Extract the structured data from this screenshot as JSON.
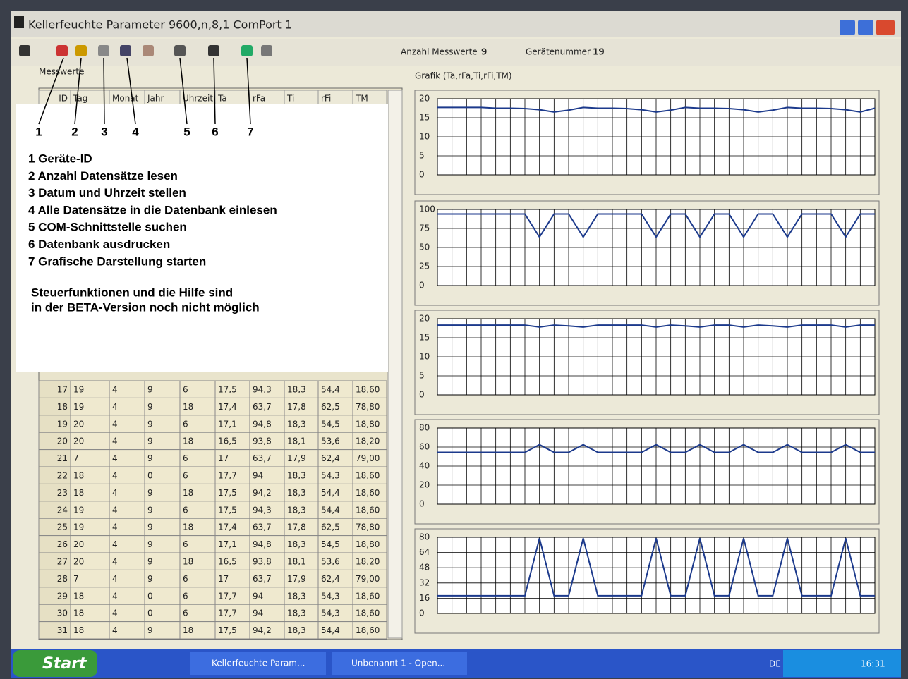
{
  "window": {
    "title": "Kellerfeuchte Parameter 9600,n,8,1 ComPort 1"
  },
  "toolbar": {
    "count_label": "Anzahl Messwerte",
    "count": 9,
    "device_label": "Gerätenummer",
    "device": 19
  },
  "table": {
    "group": "Messwerte",
    "columns": [
      "ID",
      "Tag",
      "Monat",
      "Jahr",
      "Uhrzeit",
      "Ta",
      "rFa",
      "Ti",
      "rFi",
      "TM"
    ],
    "rows": [
      [
        "17",
        "19",
        "4",
        "9",
        "6",
        "17,5",
        "94,3",
        "18,3",
        "54,4",
        "18,60"
      ],
      [
        "18",
        "19",
        "4",
        "9",
        "18",
        "17,4",
        "63,7",
        "17,8",
        "62,5",
        "78,80"
      ],
      [
        "19",
        "20",
        "4",
        "9",
        "6",
        "17,1",
        "94,8",
        "18,3",
        "54,5",
        "18,80"
      ],
      [
        "20",
        "20",
        "4",
        "9",
        "18",
        "16,5",
        "93,8",
        "18,1",
        "53,6",
        "18,20"
      ],
      [
        "21",
        "7",
        "4",
        "9",
        "6",
        "17",
        "63,7",
        "17,9",
        "62,4",
        "79,00"
      ],
      [
        "22",
        "18",
        "4",
        "0",
        "6",
        "17,7",
        "94",
        "18,3",
        "54,3",
        "18,60"
      ],
      [
        "23",
        "18",
        "4",
        "9",
        "18",
        "17,5",
        "94,2",
        "18,3",
        "54,4",
        "18,60"
      ],
      [
        "24",
        "19",
        "4",
        "9",
        "6",
        "17,5",
        "94,3",
        "18,3",
        "54,4",
        "18,60"
      ],
      [
        "25",
        "19",
        "4",
        "9",
        "18",
        "17,4",
        "63,7",
        "17,8",
        "62,5",
        "78,80"
      ],
      [
        "26",
        "20",
        "4",
        "9",
        "6",
        "17,1",
        "94,8",
        "18,3",
        "54,5",
        "18,80"
      ],
      [
        "27",
        "20",
        "4",
        "9",
        "18",
        "16,5",
        "93,8",
        "18,1",
        "53,6",
        "18,20"
      ],
      [
        "28",
        "7",
        "4",
        "9",
        "6",
        "17",
        "63,7",
        "17,9",
        "62,4",
        "79,00"
      ],
      [
        "29",
        "18",
        "4",
        "0",
        "6",
        "17,7",
        "94",
        "18,3",
        "54,3",
        "18,60"
      ],
      [
        "30",
        "18",
        "4",
        "0",
        "6",
        "17,7",
        "94",
        "18,3",
        "54,3",
        "18,60"
      ],
      [
        "31",
        "18",
        "4",
        "9",
        "18",
        "17,5",
        "94,2",
        "18,3",
        "54,4",
        "18,60"
      ]
    ]
  },
  "overlay": {
    "markers": [
      "1",
      "2",
      "3",
      "4",
      "5",
      "6",
      "7"
    ],
    "legend": [
      "1 Geräte-ID",
      "2 Anzahl Datensätze lesen",
      "3 Datum und Uhrzeit stellen",
      "4 Alle Datensätze in die Datenbank einlesen",
      "5 COM-Schnittstelle suchen",
      "6 Datenbank ausdrucken",
      "7 Grafische Darstellung starten"
    ],
    "note": [
      "Steuerfunktionen und die Hilfe sind",
      "in der BETA-Version noch nicht möglich"
    ]
  },
  "graph_title": "Grafik (Ta,rFa,Ti,rFi,TM)",
  "chart_data": [
    {
      "type": "line",
      "color": "#1c3a8c",
      "grid": true,
      "ylim": [
        0,
        20
      ],
      "yticks": [
        0,
        5,
        10,
        15,
        20
      ],
      "values": [
        17.7,
        17.7,
        17.7,
        17.7,
        17.5,
        17.5,
        17.4,
        17.1,
        16.5,
        17,
        17.7,
        17.5,
        17.5,
        17.4,
        17.1,
        16.5,
        17,
        17.7,
        17.5,
        17.5,
        17.4,
        17.1,
        16.5,
        17,
        17.7,
        17.5,
        17.5,
        17.4,
        17.1,
        16.5,
        17.5
      ]
    },
    {
      "type": "line",
      "color": "#1c3a8c",
      "grid": true,
      "ylim": [
        0,
        100
      ],
      "yticks": [
        0,
        25,
        50,
        75,
        100
      ],
      "values": [
        94,
        94,
        94,
        94,
        94,
        94,
        94,
        63.7,
        94,
        94,
        63.7,
        94,
        94,
        94,
        94,
        63.7,
        94,
        94,
        63.7,
        94,
        94,
        63.7,
        94,
        94,
        63.7,
        94,
        94,
        94,
        63.7,
        94,
        94
      ]
    },
    {
      "type": "line",
      "color": "#1c3a8c",
      "grid": true,
      "ylim": [
        0,
        20
      ],
      "yticks": [
        0,
        5,
        10,
        15,
        20
      ],
      "values": [
        18.3,
        18.3,
        18.3,
        18.3,
        18.3,
        18.3,
        18.3,
        17.8,
        18.3,
        18.1,
        17.8,
        18.3,
        18.3,
        18.3,
        18.3,
        17.8,
        18.3,
        18.1,
        17.8,
        18.3,
        18.3,
        17.8,
        18.3,
        18.1,
        17.8,
        18.3,
        18.3,
        18.3,
        17.8,
        18.3,
        18.3
      ]
    },
    {
      "type": "line",
      "color": "#1c3a8c",
      "grid": true,
      "ylim": [
        0,
        80
      ],
      "yticks": [
        0,
        20,
        40,
        60,
        80
      ],
      "values": [
        54.4,
        54.4,
        54.4,
        54.4,
        54.4,
        54.4,
        54.4,
        62.5,
        54.4,
        54.4,
        62.5,
        54.4,
        54.4,
        54.4,
        54.4,
        62.5,
        54.4,
        54.4,
        62.5,
        54.4,
        54.4,
        62.5,
        54.4,
        54.4,
        62.5,
        54.4,
        54.4,
        54.4,
        62.5,
        54.4,
        54.4
      ]
    },
    {
      "type": "line",
      "color": "#1c3a8c",
      "grid": true,
      "ylim": [
        0,
        80
      ],
      "yticks": [
        0,
        16,
        32,
        48,
        64,
        80
      ],
      "values": [
        18.6,
        18.6,
        18.6,
        18.6,
        18.6,
        18.6,
        18.6,
        79,
        18.6,
        18.6,
        79,
        18.6,
        18.6,
        18.6,
        18.6,
        79,
        18.6,
        18.6,
        79,
        18.6,
        18.6,
        79,
        18.6,
        18.6,
        79,
        18.6,
        18.6,
        18.6,
        79,
        18.6,
        18.6
      ]
    }
  ],
  "taskbar": {
    "start": "Start",
    "tasks": [
      "Kellerfeuchte Param...",
      "Unbenannt 1 - Open..."
    ],
    "language": "DE",
    "clock": "16:31"
  }
}
